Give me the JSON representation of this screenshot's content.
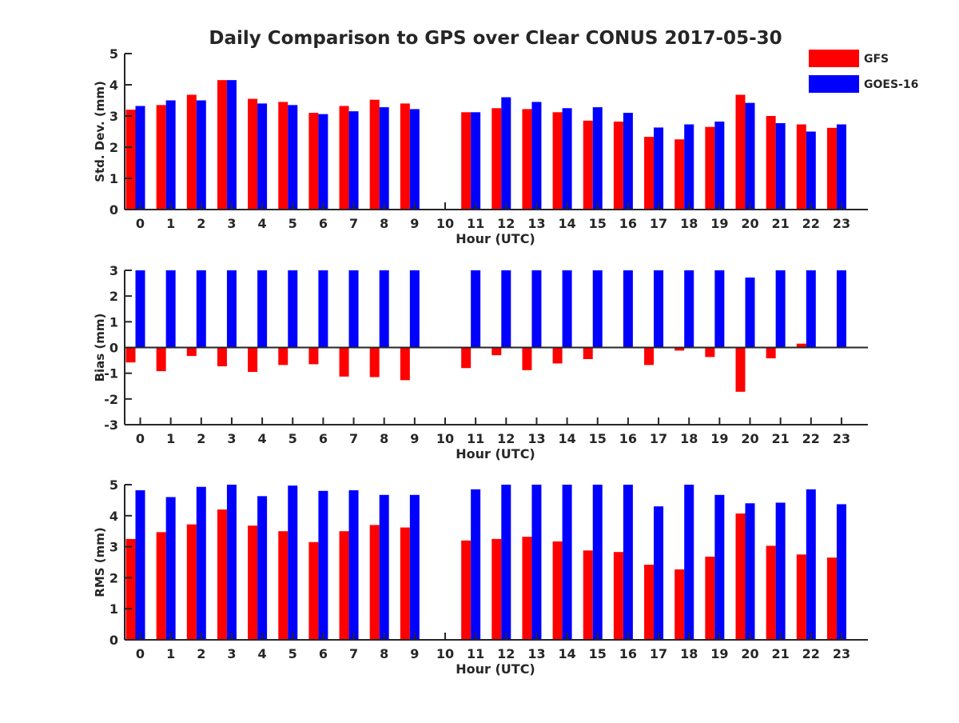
{
  "chart_data": {
    "type": "bar",
    "title": "Daily Comparison to GPS over Clear CONUS 2017-05-30",
    "legend": {
      "position": "top-right",
      "entries": [
        {
          "name": "GFS",
          "color": "#ff0000"
        },
        {
          "name": "GOES-16",
          "color": "#0000ff"
        }
      ]
    },
    "panels": [
      {
        "id": "stddev",
        "ylabel": "Std. Dev. (mm)",
        "xlabel": "Hour (UTC)",
        "ylim": [
          0,
          5
        ],
        "yticks": [
          "0",
          "1",
          "2",
          "3",
          "4",
          "5"
        ],
        "categories": [
          "0",
          "1",
          "2",
          "3",
          "4",
          "5",
          "6",
          "7",
          "8",
          "9",
          "10",
          "11",
          "12",
          "13",
          "14",
          "15",
          "16",
          "17",
          "18",
          "19",
          "20",
          "21",
          "22",
          "23"
        ],
        "series": [
          {
            "name": "GFS",
            "values": [
              3.2,
              3.35,
              3.68,
              4.15,
              3.55,
              3.45,
              3.1,
              3.32,
              3.52,
              3.4,
              null,
              3.12,
              3.25,
              3.22,
              3.12,
              2.85,
              2.82,
              2.33,
              2.25,
              2.65,
              3.68,
              3.0,
              2.73,
              2.62
            ]
          },
          {
            "name": "GOES-16",
            "values": [
              3.32,
              3.5,
              3.5,
              4.15,
              3.4,
              3.35,
              3.06,
              3.15,
              3.28,
              3.22,
              null,
              3.12,
              3.6,
              3.45,
              3.25,
              3.28,
              3.1,
              2.63,
              2.73,
              2.82,
              3.42,
              2.77,
              2.5,
              2.73
            ]
          }
        ]
      },
      {
        "id": "bias",
        "ylabel": "Bias (mm)",
        "xlabel": "Hour (UTC)",
        "ylim": [
          -3,
          3
        ],
        "yticks": [
          "-3",
          "-2",
          "-1",
          "0",
          "1",
          "2",
          "3"
        ],
        "categories": [
          "0",
          "1",
          "2",
          "3",
          "4",
          "5",
          "6",
          "7",
          "8",
          "9",
          "10",
          "11",
          "12",
          "13",
          "14",
          "15",
          "16",
          "17",
          "18",
          "19",
          "20",
          "21",
          "22",
          "23"
        ],
        "series": [
          {
            "name": "GFS",
            "values": [
              -0.58,
              -0.92,
              -0.33,
              -0.73,
              -0.95,
              -0.68,
              -0.65,
              -1.13,
              -1.15,
              -1.27,
              null,
              -0.8,
              -0.3,
              -0.88,
              -0.62,
              -0.45,
              0,
              -0.68,
              -0.12,
              -0.37,
              -1.72,
              -0.42,
              0.15,
              0
            ]
          },
          {
            "name": "GOES-16",
            "values": [
              3,
              3,
              3,
              3,
              3,
              3,
              3,
              3,
              3,
              3,
              null,
              3,
              3,
              3,
              3,
              3,
              3,
              3,
              3,
              3,
              2.72,
              3,
              3,
              3
            ]
          }
        ]
      },
      {
        "id": "rms",
        "ylabel": "RMS (mm)",
        "xlabel": "Hour (UTC)",
        "ylim": [
          0,
          5
        ],
        "yticks": [
          "0",
          "1",
          "2",
          "3",
          "4",
          "5"
        ],
        "categories": [
          "0",
          "1",
          "2",
          "3",
          "4",
          "5",
          "6",
          "7",
          "8",
          "9",
          "10",
          "11",
          "12",
          "13",
          "14",
          "15",
          "16",
          "17",
          "18",
          "19",
          "20",
          "21",
          "22",
          "23"
        ],
        "series": [
          {
            "name": "GFS",
            "values": [
              3.25,
              3.47,
              3.72,
              4.2,
              3.68,
              3.5,
              3.15,
              3.5,
              3.7,
              3.62,
              null,
              3.2,
              3.25,
              3.32,
              3.17,
              2.88,
              2.83,
              2.42,
              2.27,
              2.68,
              4.07,
              3.03,
              2.75,
              2.65
            ]
          },
          {
            "name": "GOES-16",
            "values": [
              4.82,
              4.6,
              4.93,
              5.0,
              4.63,
              4.97,
              4.8,
              4.82,
              4.67,
              4.67,
              null,
              4.85,
              5.0,
              5.0,
              5.0,
              5.0,
              5.0,
              4.3,
              5.0,
              4.67,
              4.4,
              4.42,
              4.85,
              4.37
            ]
          }
        ]
      }
    ]
  }
}
